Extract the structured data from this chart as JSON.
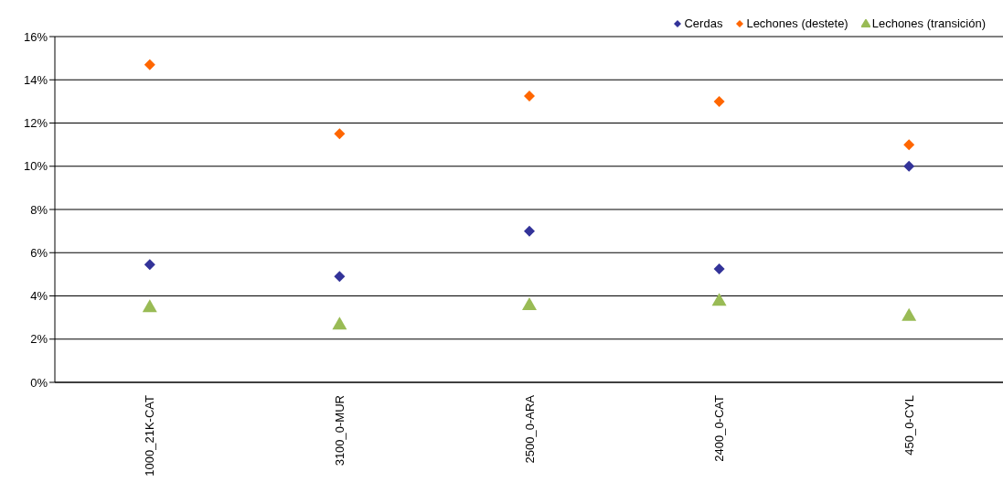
{
  "chart_data": {
    "type": "scatter",
    "categories": [
      "1000_21K-CAT",
      "3100_0-MUR",
      "2500_0-ARA",
      "2400_0-CAT",
      "450_0-CYL"
    ],
    "series": [
      {
        "name": "Cerdas",
        "color": "#333399",
        "marker": "diamond",
        "values": [
          5.45,
          4.9,
          7.0,
          5.25,
          10.0
        ]
      },
      {
        "name": "Lechones (destete)",
        "color": "#ff6600",
        "marker": "diamond",
        "values": [
          14.7,
          11.5,
          13.25,
          13.0,
          11.0
        ]
      },
      {
        "name": "Lechones (transición)",
        "color": "#99bb55",
        "marker": "triangle",
        "values": [
          3.5,
          2.7,
          3.6,
          3.8,
          3.1
        ]
      }
    ],
    "ylim": [
      0,
      16
    ],
    "yticks": [
      {
        "value": 0,
        "label": "0%"
      },
      {
        "value": 2,
        "label": "2%"
      },
      {
        "value": 4,
        "label": "4%"
      },
      {
        "value": 6,
        "label": "6%"
      },
      {
        "value": 8,
        "label": "8%"
      },
      {
        "value": 10,
        "label": "10%"
      },
      {
        "value": 12,
        "label": "12%"
      },
      {
        "value": 14,
        "label": "14%"
      },
      {
        "value": 16,
        "label": "16%"
      }
    ],
    "grid": "y",
    "legend": "top right"
  }
}
